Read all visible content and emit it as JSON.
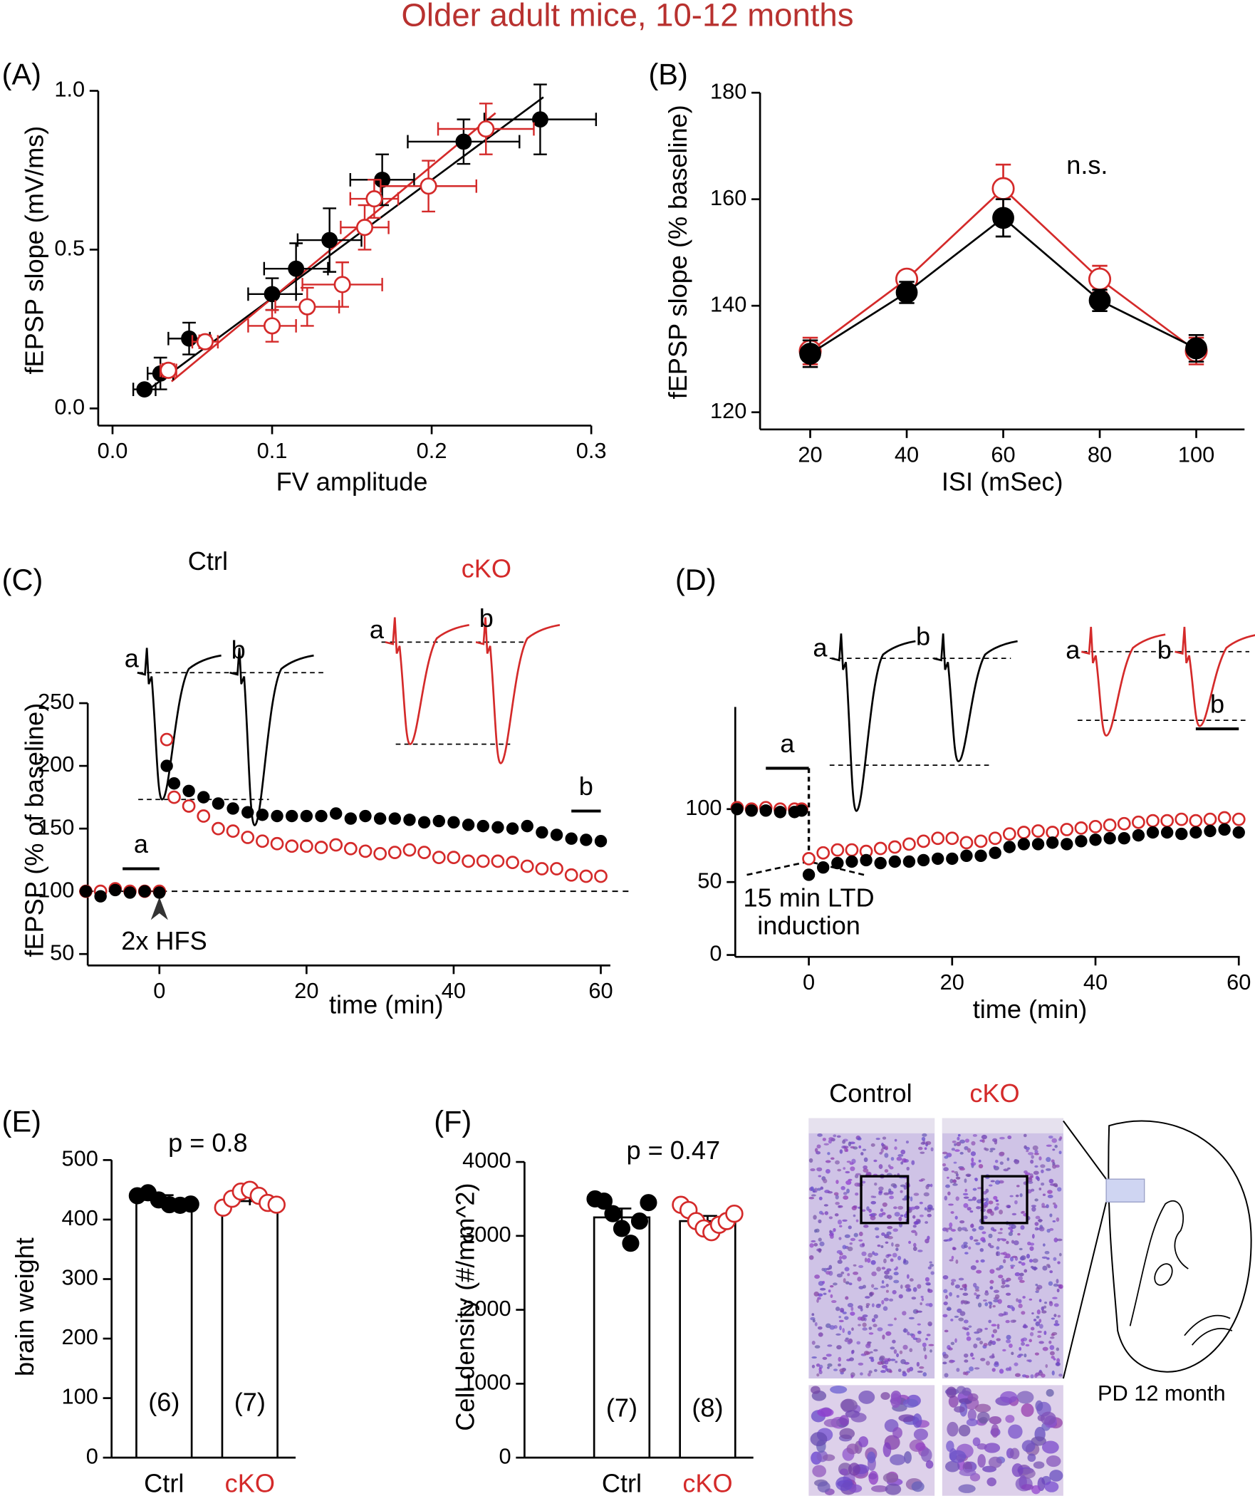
{
  "figure_title": "Older adult mice, 10-12 months",
  "title_color": "#b8312f",
  "chart_data": [
    {
      "panel": "(A)",
      "type": "scatter",
      "x_label": "FV amplitude",
      "y_label": "fEPSP slope (mV/ms)",
      "xlim": [
        0,
        0.3
      ],
      "xticks": [
        {
          "value": 0,
          "label": "0.0"
        },
        0.1,
        0.2,
        0.3
      ],
      "ylim": [
        0,
        1
      ],
      "yticks": [
        {
          "value": 0,
          "label": "0.0"
        },
        0.5,
        {
          "value": 1,
          "label": "1.0"
        }
      ],
      "series": [
        {
          "color": "#000000",
          "filled": true,
          "x": [
            0.02,
            0.03,
            0.048,
            0.1,
            0.115,
            0.136,
            0.169,
            0.22,
            0.268
          ],
          "values": [
            0.06,
            0.11,
            0.22,
            0.36,
            0.44,
            0.53,
            0.72,
            0.84,
            0.91
          ],
          "x_errors": [
            0.007,
            0.008,
            0.013,
            0.015,
            0.02,
            0.02,
            0.02,
            0.035,
            0.035
          ],
          "errors": [
            0.01,
            0.05,
            0.05,
            0.05,
            0.08,
            0.1,
            0.08,
            0.07,
            0.11
          ],
          "fit_x": [
            0.02,
            0.27
          ],
          "fit_y": [
            0.05,
            0.98
          ]
        },
        {
          "color": "#d42a2a",
          "filled": false,
          "x": [
            0.035,
            0.058,
            0.1,
            0.122,
            0.144,
            0.158,
            0.164,
            0.198,
            0.234
          ],
          "values": [
            0.12,
            0.21,
            0.26,
            0.32,
            0.39,
            0.57,
            0.66,
            0.7,
            0.88
          ],
          "x_errors": [
            0.005,
            0.008,
            0.015,
            0.02,
            0.025,
            0.015,
            0.015,
            0.03,
            0.03
          ],
          "errors": [
            0.02,
            0.02,
            0.05,
            0.06,
            0.07,
            0.07,
            0.06,
            0.08,
            0.08
          ],
          "fit_x": [
            0.037,
            0.24
          ],
          "fit_y": [
            0.085,
            0.93
          ]
        }
      ]
    },
    {
      "panel": "(B)",
      "type": "line",
      "x_label": "ISI (mSec)",
      "y_label": "fEPSP slope (% baseline)",
      "annotation": "n.s.",
      "x": [
        20,
        40,
        60,
        80,
        100
      ],
      "xlim": [
        10,
        110
      ],
      "xticks": [
        20,
        40,
        60,
        80,
        100
      ],
      "ylim": [
        120,
        180
      ],
      "yticks": [
        120,
        140,
        160,
        180
      ],
      "connect": true,
      "series": [
        {
          "color": "#000000",
          "filled": true,
          "values": [
            131,
            142.5,
            156.5,
            141,
            132
          ],
          "errors": [
            2.5,
            2,
            3.5,
            2,
            2.5
          ]
        },
        {
          "color": "#d42a2a",
          "filled": false,
          "values": [
            131.5,
            145,
            162,
            145,
            131.5
          ],
          "errors": [
            2.5,
            1.5,
            4.5,
            2.5,
            2.5
          ]
        }
      ]
    },
    {
      "panel": "(C)",
      "type": "line",
      "x_label": "time (min)",
      "y_label": "fEPSP (% of baseline)",
      "x": [
        -10,
        -8,
        -6,
        -4,
        -2,
        0,
        1,
        2,
        4,
        6,
        8,
        10,
        12,
        14,
        16,
        18,
        20,
        22,
        24,
        26,
        28,
        30,
        32,
        34,
        36,
        38,
        40,
        42,
        44,
        46,
        48,
        50,
        52,
        54,
        56,
        58,
        60
      ],
      "xlim": [
        -10,
        60
      ],
      "xticks": [
        0,
        20,
        40,
        60
      ],
      "ylim": [
        50,
        250
      ],
      "yticks": [
        50,
        100,
        150,
        200,
        250
      ],
      "connect": false,
      "reference_line": 100,
      "period_bars": [
        {
          "label": "a",
          "x": [
            -5,
            0
          ],
          "y": 118
        },
        {
          "label": "b",
          "x": [
            56,
            60
          ],
          "y": 164
        }
      ],
      "arrow_annotation": {
        "text": "2x HFS",
        "x": 0
      },
      "insets": [
        {
          "label": "Ctrl",
          "color": "#000000",
          "traces": [
            "a",
            "b"
          ]
        },
        {
          "label": "cKO",
          "color": "#d42a2a",
          "traces": [
            "a",
            "b"
          ]
        }
      ],
      "series": [
        {
          "color": "#d42a2a",
          "filled": false,
          "values": [
            100,
            100,
            102,
            100,
            100,
            100,
            221,
            175,
            168,
            160,
            150,
            148,
            143,
            140,
            138,
            136,
            136,
            135,
            137,
            134,
            132,
            130,
            131,
            133,
            131,
            127,
            127,
            124,
            124,
            124,
            123,
            120,
            118,
            118,
            113,
            112,
            112
          ]
        },
        {
          "color": "#000000",
          "filled": true,
          "values": [
            100,
            96,
            101,
            99,
            100,
            99,
            200,
            186,
            180,
            175,
            170,
            166,
            163,
            161,
            160,
            160,
            160,
            160,
            162,
            158,
            160,
            158,
            158,
            157,
            155,
            156,
            155,
            153,
            152,
            151,
            150,
            152,
            147,
            145,
            142,
            141,
            140
          ]
        }
      ]
    },
    {
      "panel": "(D)",
      "type": "line",
      "x_label": "time (min)",
      "x": [
        -10,
        -8,
        -6,
        -4,
        -2,
        -1,
        0,
        2,
        4,
        6,
        8,
        10,
        12,
        14,
        16,
        18,
        20,
        22,
        24,
        26,
        28,
        30,
        32,
        34,
        36,
        38,
        40,
        42,
        44,
        46,
        48,
        50,
        52,
        54,
        56,
        58,
        60
      ],
      "xlim": [
        -10,
        60
      ],
      "xticks": [
        0,
        20,
        40,
        60
      ],
      "ylim": [
        0,
        170
      ],
      "yticks": [
        0,
        50,
        100
      ],
      "connect": false,
      "period_bars": [
        {
          "label": "a",
          "x": [
            -6,
            0
          ],
          "y": 128
        },
        {
          "label": "b",
          "x": [
            54,
            60
          ],
          "y": 155
        }
      ],
      "induction_annotation": {
        "lines": [
          "15 min LTD",
          "induction"
        ],
        "x": 0
      },
      "insets": [
        {
          "color": "#000000",
          "traces": [
            "a",
            "b"
          ]
        },
        {
          "color": "#d42a2a",
          "traces": [
            "a",
            "b"
          ]
        }
      ],
      "series": [
        {
          "color": "#d42a2a",
          "filled": false,
          "values": [
            101,
            100,
            101,
            100,
            100,
            100,
            66,
            70,
            72,
            72,
            71,
            73,
            74,
            76,
            78,
            80,
            80,
            77,
            78,
            80,
            83,
            84,
            85,
            84,
            86,
            87,
            88,
            89,
            90,
            91,
            92,
            92,
            93,
            92,
            93,
            94,
            93
          ]
        },
        {
          "color": "#000000",
          "filled": true,
          "values": [
            100,
            99,
            99,
            98,
            98,
            99,
            55,
            60,
            63,
            64,
            65,
            63,
            64,
            64,
            65,
            66,
            66,
            68,
            68,
            70,
            74,
            76,
            76,
            77,
            76,
            78,
            79,
            80,
            80,
            82,
            84,
            84,
            83,
            84,
            85,
            86,
            84
          ]
        }
      ]
    },
    {
      "panel": "(E)",
      "type": "bar",
      "y_label": "brain weight",
      "annotation": "p = 0.8",
      "categories": [
        "Ctrl",
        "cKO"
      ],
      "values": [
        433,
        431
      ],
      "errors": [
        8,
        7
      ],
      "n_labels": [
        "(6)",
        "(7)"
      ],
      "points": [
        [
          440,
          445,
          433,
          425,
          424,
          426
        ],
        [
          420,
          435,
          447,
          450,
          440,
          428,
          425
        ]
      ],
      "point_colors": [
        "#000000",
        "#d42a2a"
      ],
      "point_filled": [
        true,
        false
      ],
      "ylim": [
        0,
        500
      ],
      "yticks": [
        0,
        100,
        200,
        300,
        400,
        500
      ]
    },
    {
      "panel": "(F)",
      "type": "bar",
      "y_label": "Cell density (#/mm^2)",
      "annotation": "p = 0.47",
      "categories": [
        "Ctrl",
        "cKO"
      ],
      "values": [
        3250,
        3200
      ],
      "errors": [
        120,
        70
      ],
      "n_labels": [
        "(7)",
        "(8)"
      ],
      "points": [
        [
          3500,
          3470,
          3300,
          3100,
          2900,
          3200,
          3450
        ],
        [
          3420,
          3350,
          3200,
          3100,
          3050,
          3150,
          3200,
          3300
        ]
      ],
      "point_colors": [
        "#000000",
        "#d42a2a"
      ],
      "point_filled": [
        true,
        false
      ],
      "ylim": [
        0,
        4000
      ],
      "yticks": [
        0,
        1000,
        2000,
        3000,
        4000
      ]
    }
  ],
  "histology": {
    "labels": [
      "Control",
      "cKO"
    ],
    "label_colors": [
      "#000000",
      "#d42a2a"
    ],
    "atlas_label": "PD 12 month"
  }
}
